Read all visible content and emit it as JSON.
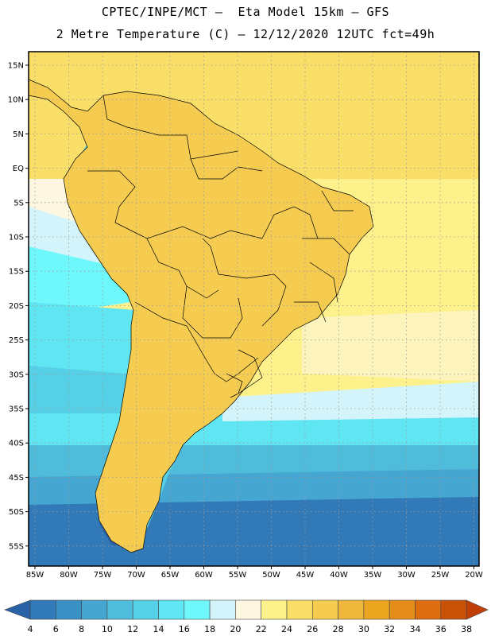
{
  "header": {
    "line1": "CPTEC/INPE/MCT –  Eta Model 15km – GFS",
    "line2": "2 Metre Temperature (C) – 12/12/2020 12UTC fct=49h"
  },
  "map": {
    "lat_labels": [
      "15N",
      "10N",
      "5N",
      "EQ",
      "5S",
      "10S",
      "15S",
      "20S",
      "25S",
      "30S",
      "35S",
      "40S",
      "45S",
      "50S",
      "55S"
    ],
    "lon_labels": [
      "85W",
      "80W",
      "75W",
      "70W",
      "65W",
      "60W",
      "55W",
      "50W",
      "45W",
      "40W",
      "35W",
      "30W",
      "25W",
      "20W"
    ]
  },
  "colorbar": {
    "labels": [
      "4",
      "6",
      "8",
      "10",
      "12",
      "14",
      "16",
      "18",
      "20",
      "22",
      "24",
      "26",
      "28",
      "30",
      "32",
      "34",
      "36",
      "38"
    ],
    "colors": [
      "#2a62a8",
      "#3279b8",
      "#3b90c6",
      "#45a6d2",
      "#4fbcdc",
      "#56d0e6",
      "#5fe6f2",
      "#6ff8fb",
      "#d4f4fb",
      "#fdf6e0",
      "#fcf18a",
      "#f9df68",
      "#f5cc50",
      "#efb73c",
      "#eba51f",
      "#e58d1a",
      "#dc6d11",
      "#c95209",
      "#bf3f06"
    ]
  }
}
